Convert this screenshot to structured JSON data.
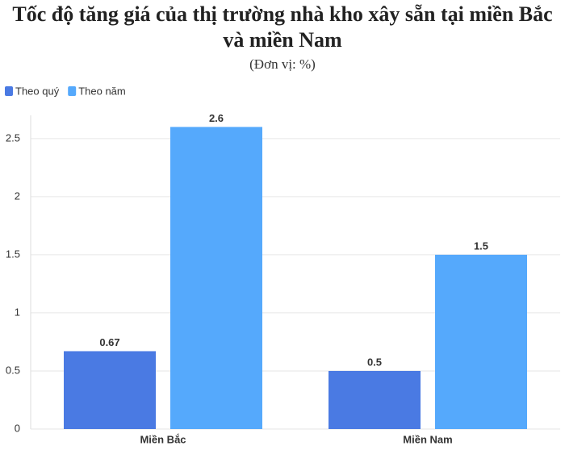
{
  "chart_data": {
    "type": "bar",
    "title": "Tốc độ tăng giá của thị trường nhà kho xây sẵn tại miền Bắc và miền Nam",
    "subtitle": "(Đơn vị: %)",
    "categories": [
      "Miền Bắc",
      "Miền Nam"
    ],
    "series": [
      {
        "name": "Theo quý",
        "color": "#4a7ae3",
        "values": [
          0.67,
          0.5
        ]
      },
      {
        "name": "Theo năm",
        "color": "#55a9fc",
        "values": [
          2.6,
          1.5
        ]
      }
    ],
    "ylim": [
      0,
      2.7
    ],
    "yticks": [
      0,
      0.5,
      1,
      1.5,
      2,
      2.5
    ],
    "grid": true,
    "legend": "top-left"
  }
}
